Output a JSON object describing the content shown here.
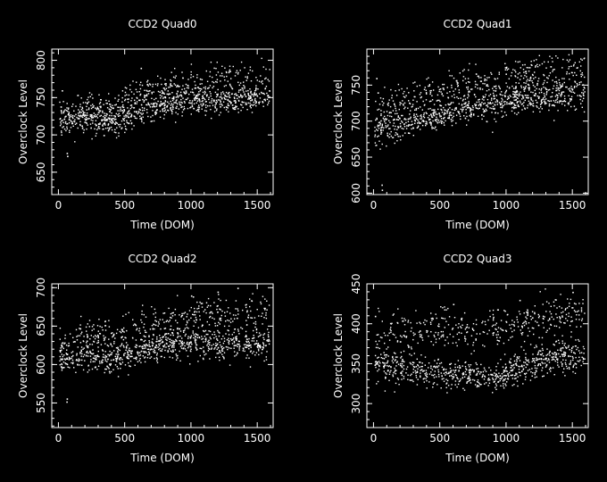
{
  "chart_data": [
    {
      "type": "scatter",
      "title": "CCD2 Quad0",
      "xlabel": "Time (DOM)",
      "ylabel": "Overclock Level",
      "xlim": [
        -50,
        1620
      ],
      "ylim": [
        620,
        815
      ],
      "x_ticks": [
        0,
        500,
        1000,
        1500
      ],
      "y_ticks": [
        650,
        700,
        750,
        800
      ],
      "grid": false,
      "trend": {
        "bands": [
          {
            "x": [
              0,
              200,
              400,
              500,
              600,
              800,
              1000,
              1200,
              1400,
              1600
            ],
            "y": [
              718,
              724,
              718,
              722,
              738,
              742,
              750,
              748,
              750,
              752
            ],
            "spread": 10,
            "weight": 0.75
          },
          {
            "x": [
              0,
              200,
              400,
              600,
              800,
              1000,
              1200,
              1400,
              1600
            ],
            "y": [
              730,
              742,
              740,
              760,
              765,
              772,
              780,
              778,
              780
            ],
            "spread": 10,
            "weight": 0.25
          }
        ],
        "outliers": [
          [
            62,
            676
          ],
          [
            65,
            672
          ],
          [
            25,
            760
          ],
          [
            340,
            700
          ],
          [
            620,
            790
          ]
        ]
      }
    },
    {
      "type": "scatter",
      "title": "CCD2 Quad1",
      "xlabel": "Time (DOM)",
      "ylabel": "Overclock Level",
      "xlim": [
        -50,
        1620
      ],
      "ylim": [
        598,
        800
      ],
      "x_ticks": [
        0,
        500,
        1000,
        1500
      ],
      "y_ticks": [
        600,
        650,
        700,
        750
      ],
      "grid": false,
      "trend": {
        "bands": [
          {
            "x": [
              0,
              200,
              400,
              600,
              800,
              1000,
              1200,
              1400,
              1600
            ],
            "y": [
              685,
              700,
              705,
              715,
              722,
              730,
              735,
              738,
              740
            ],
            "spread": 11,
            "weight": 0.7
          },
          {
            "x": [
              0,
              200,
              400,
              600,
              800,
              1000,
              1200,
              1400,
              1600
            ],
            "y": [
              710,
              730,
              740,
              750,
              758,
              765,
              770,
              772,
              775
            ],
            "spread": 11,
            "weight": 0.3
          }
        ],
        "outliers": [
          [
            60,
            612
          ],
          [
            62,
            605
          ],
          [
            30,
            740
          ],
          [
            20,
            760
          ]
        ]
      }
    },
    {
      "type": "scatter",
      "title": "CCD2 Quad2",
      "xlabel": "Time (DOM)",
      "ylabel": "Overclock Level",
      "xlim": [
        -50,
        1620
      ],
      "ylim": [
        518,
        705
      ],
      "x_ticks": [
        0,
        500,
        1000,
        1500
      ],
      "y_ticks": [
        550,
        600,
        650,
        700
      ],
      "grid": false,
      "trend": {
        "bands": [
          {
            "x": [
              0,
              200,
              400,
              600,
              800,
              1000,
              1200,
              1400,
              1600
            ],
            "y": [
              605,
              612,
              608,
              618,
              625,
              630,
              628,
              630,
              630
            ],
            "spread": 10,
            "weight": 0.7
          },
          {
            "x": [
              0,
              200,
              400,
              600,
              800,
              1000,
              1200,
              1400,
              1600
            ],
            "y": [
              625,
              640,
              640,
              650,
              655,
              665,
              668,
              670,
              672
            ],
            "spread": 11,
            "weight": 0.3
          }
        ],
        "outliers": [
          [
            62,
            556
          ],
          [
            60,
            552
          ],
          [
            1000,
            690
          ],
          [
            1200,
            695
          ],
          [
            1350,
            700
          ]
        ]
      }
    },
    {
      "type": "scatter",
      "title": "CCD2 Quad3",
      "xlabel": "Time (DOM)",
      "ylabel": "Overclock Level",
      "xlim": [
        -50,
        1620
      ],
      "ylim": [
        270,
        450
      ],
      "x_ticks": [
        0,
        500,
        1000,
        1500
      ],
      "y_ticks": [
        300,
        350,
        400,
        450
      ],
      "grid": false,
      "trend": {
        "bands": [
          {
            "x": [
              0,
              200,
              400,
              600,
              800,
              900,
              1000,
              1200,
              1400,
              1600
            ],
            "y": [
              350,
              345,
              340,
              338,
              335,
              333,
              340,
              352,
              360,
              362
            ],
            "spread": 10,
            "weight": 0.65
          },
          {
            "x": [
              0,
              200,
              400,
              600,
              800,
              1000,
              1200,
              1400,
              1600
            ],
            "y": [
              385,
              390,
              392,
              395,
              392,
              400,
              405,
              410,
              415
            ],
            "spread": 13,
            "weight": 0.35
          }
        ],
        "outliers": [
          [
            10,
            410
          ],
          [
            600,
            425
          ],
          [
            1100,
            430
          ],
          [
            1500,
            440
          ]
        ]
      }
    }
  ]
}
